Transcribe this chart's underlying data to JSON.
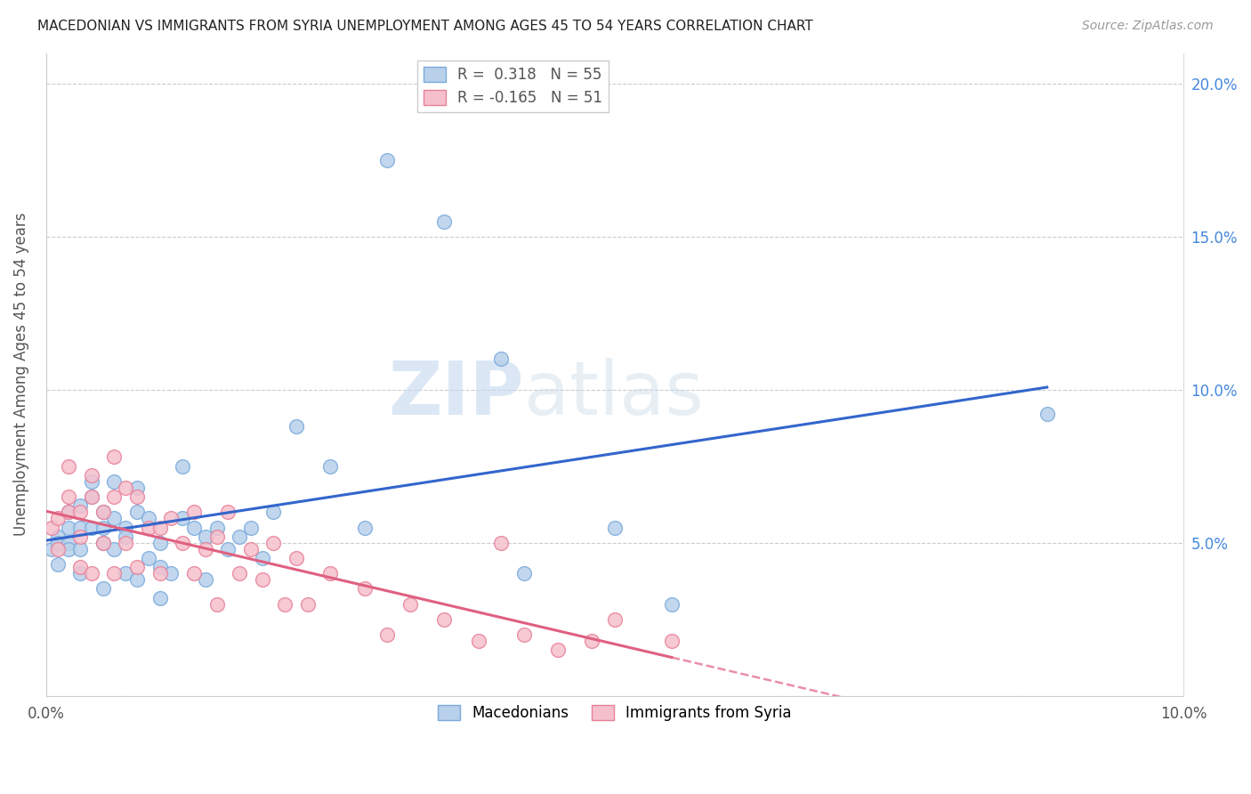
{
  "title": "MACEDONIAN VS IMMIGRANTS FROM SYRIA UNEMPLOYMENT AMONG AGES 45 TO 54 YEARS CORRELATION CHART",
  "source": "Source: ZipAtlas.com",
  "ylabel": "Unemployment Among Ages 45 to 54 years",
  "xlim": [
    0.0,
    0.1
  ],
  "ylim": [
    0.0,
    0.21
  ],
  "R_macedonian": 0.318,
  "N_macedonian": 55,
  "R_syrian": -0.165,
  "N_syrian": 51,
  "macedonian_color": "#b8d0ea",
  "macedonian_edge": "#7aaadd",
  "syrian_color": "#f5c0cc",
  "syrian_edge": "#e88099",
  "trend_macedonian_color": "#3366cc",
  "trend_syrian_color": "#e06080",
  "watermark_zip": "ZIP",
  "watermark_atlas": "atlas",
  "macedonian_x": [
    0.0005,
    0.001,
    0.001,
    0.001,
    0.002,
    0.002,
    0.002,
    0.002,
    0.003,
    0.003,
    0.003,
    0.003,
    0.004,
    0.004,
    0.004,
    0.005,
    0.005,
    0.005,
    0.005,
    0.006,
    0.006,
    0.006,
    0.007,
    0.007,
    0.007,
    0.008,
    0.008,
    0.008,
    0.009,
    0.009,
    0.01,
    0.01,
    0.01,
    0.011,
    0.012,
    0.012,
    0.013,
    0.014,
    0.014,
    0.015,
    0.016,
    0.017,
    0.018,
    0.019,
    0.02,
    0.022,
    0.025,
    0.028,
    0.03,
    0.035,
    0.04,
    0.042,
    0.05,
    0.055,
    0.088
  ],
  "macedonian_y": [
    0.048,
    0.052,
    0.05,
    0.043,
    0.06,
    0.055,
    0.05,
    0.048,
    0.062,
    0.055,
    0.048,
    0.04,
    0.07,
    0.065,
    0.055,
    0.06,
    0.055,
    0.05,
    0.035,
    0.07,
    0.058,
    0.048,
    0.055,
    0.052,
    0.04,
    0.068,
    0.06,
    0.038,
    0.058,
    0.045,
    0.05,
    0.042,
    0.032,
    0.04,
    0.075,
    0.058,
    0.055,
    0.052,
    0.038,
    0.055,
    0.048,
    0.052,
    0.055,
    0.045,
    0.06,
    0.088,
    0.075,
    0.055,
    0.175,
    0.155,
    0.11,
    0.04,
    0.055,
    0.03,
    0.092
  ],
  "syrian_x": [
    0.0005,
    0.001,
    0.001,
    0.002,
    0.002,
    0.002,
    0.003,
    0.003,
    0.003,
    0.004,
    0.004,
    0.004,
    0.005,
    0.005,
    0.006,
    0.006,
    0.006,
    0.007,
    0.007,
    0.008,
    0.008,
    0.009,
    0.01,
    0.01,
    0.011,
    0.012,
    0.013,
    0.013,
    0.014,
    0.015,
    0.015,
    0.016,
    0.017,
    0.018,
    0.019,
    0.02,
    0.021,
    0.022,
    0.023,
    0.025,
    0.028,
    0.03,
    0.032,
    0.035,
    0.038,
    0.04,
    0.042,
    0.045,
    0.048,
    0.05,
    0.055
  ],
  "syrian_y": [
    0.055,
    0.058,
    0.048,
    0.075,
    0.065,
    0.06,
    0.06,
    0.052,
    0.042,
    0.072,
    0.065,
    0.04,
    0.06,
    0.05,
    0.078,
    0.065,
    0.04,
    0.068,
    0.05,
    0.065,
    0.042,
    0.055,
    0.055,
    0.04,
    0.058,
    0.05,
    0.06,
    0.04,
    0.048,
    0.052,
    0.03,
    0.06,
    0.04,
    0.048,
    0.038,
    0.05,
    0.03,
    0.045,
    0.03,
    0.04,
    0.035,
    0.02,
    0.03,
    0.025,
    0.018,
    0.05,
    0.02,
    0.015,
    0.018,
    0.025,
    0.018
  ]
}
